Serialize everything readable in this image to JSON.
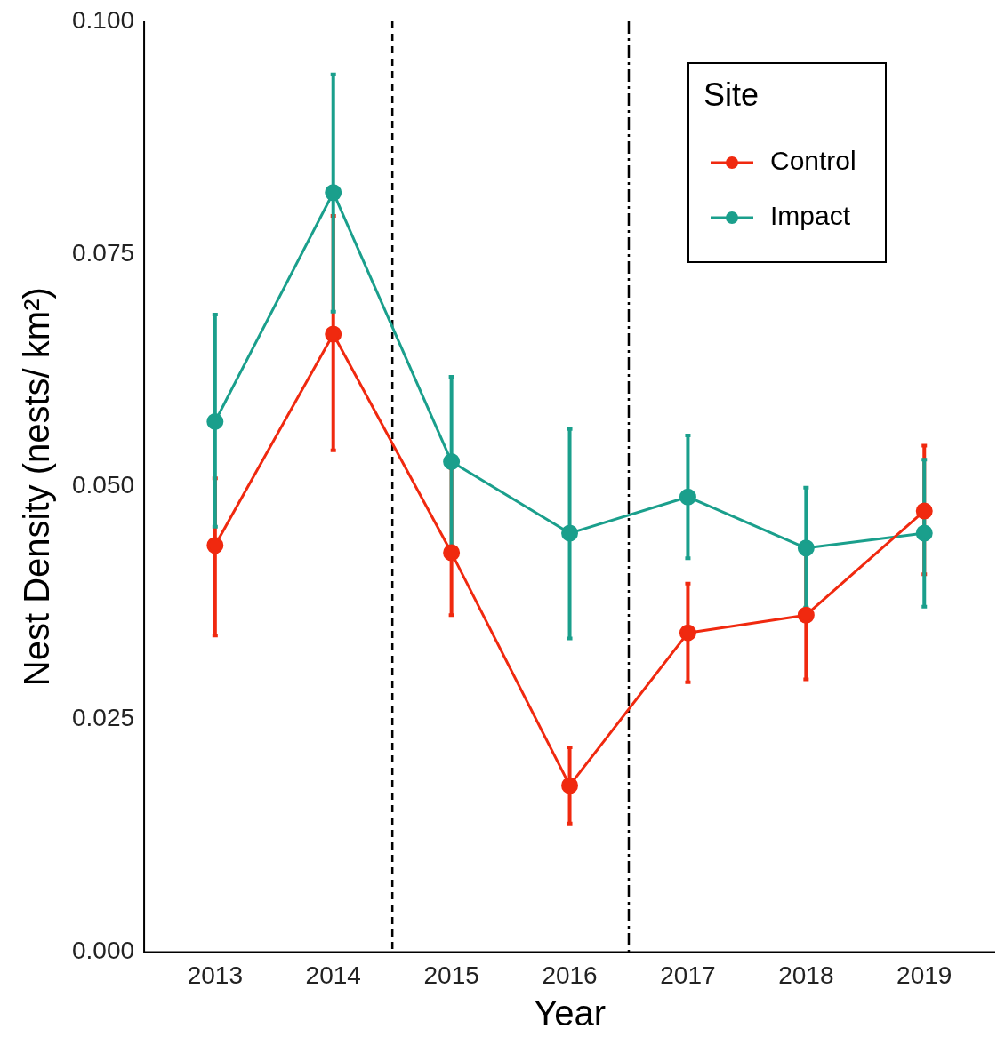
{
  "chart_data": {
    "type": "line",
    "xlabel": "Year",
    "ylabel": "Nest Density (nests/ km²)",
    "legend_title": "Site",
    "legend": "top right",
    "grid": false,
    "marker": "circle",
    "line_style": "solid",
    "x": [
      2013,
      2014,
      2015,
      2016,
      2017,
      2018,
      2019
    ],
    "xlim": [
      2012.4,
      2019.6
    ],
    "xticks": [
      2013,
      2014,
      2015,
      2016,
      2017,
      2018,
      2019
    ],
    "ylim": [
      0,
      0.1
    ],
    "yticks": [
      {
        "value": 0,
        "label": "0.000"
      },
      {
        "value": 0.025,
        "label": "0.025"
      },
      {
        "value": 0.05,
        "label": "0.050"
      },
      {
        "value": 0.075,
        "label": "0.075"
      },
      {
        "value": 0.1,
        "label": "0.100"
      }
    ],
    "series": [
      {
        "name": "Control",
        "color": "#f0290f",
        "values": [
          0.0437,
          0.0664,
          0.0429,
          0.0179,
          0.0343,
          0.0362,
          0.0474
        ],
        "errors": [
          [
            0.034,
            0.0509
          ],
          [
            0.0539,
            0.0791
          ],
          [
            0.0362,
            0.052
          ],
          [
            0.0138,
            0.022
          ],
          [
            0.029,
            0.0396
          ],
          [
            0.0293,
            0.0429
          ],
          [
            0.0406,
            0.0544
          ]
        ]
      },
      {
        "name": "Impact",
        "color": "#1a9f8c",
        "values": [
          0.057,
          0.0816,
          0.0527,
          0.045,
          0.0489,
          0.0434,
          0.045
        ],
        "errors": [
          [
            0.0457,
            0.0685
          ],
          [
            0.0688,
            0.0943
          ],
          [
            0.0436,
            0.0618
          ],
          [
            0.0337,
            0.0562
          ],
          [
            0.0423,
            0.0555
          ],
          [
            0.037,
            0.0499
          ],
          [
            0.0371,
            0.0529
          ]
        ]
      }
    ],
    "ref_lines": [
      {
        "axis": "x",
        "value": 2014.5,
        "line_style": "dashed",
        "color": "#000000"
      },
      {
        "axis": "x",
        "value": 2016.5,
        "line_style": "dashdot",
        "color": "#000000"
      }
    ]
  }
}
